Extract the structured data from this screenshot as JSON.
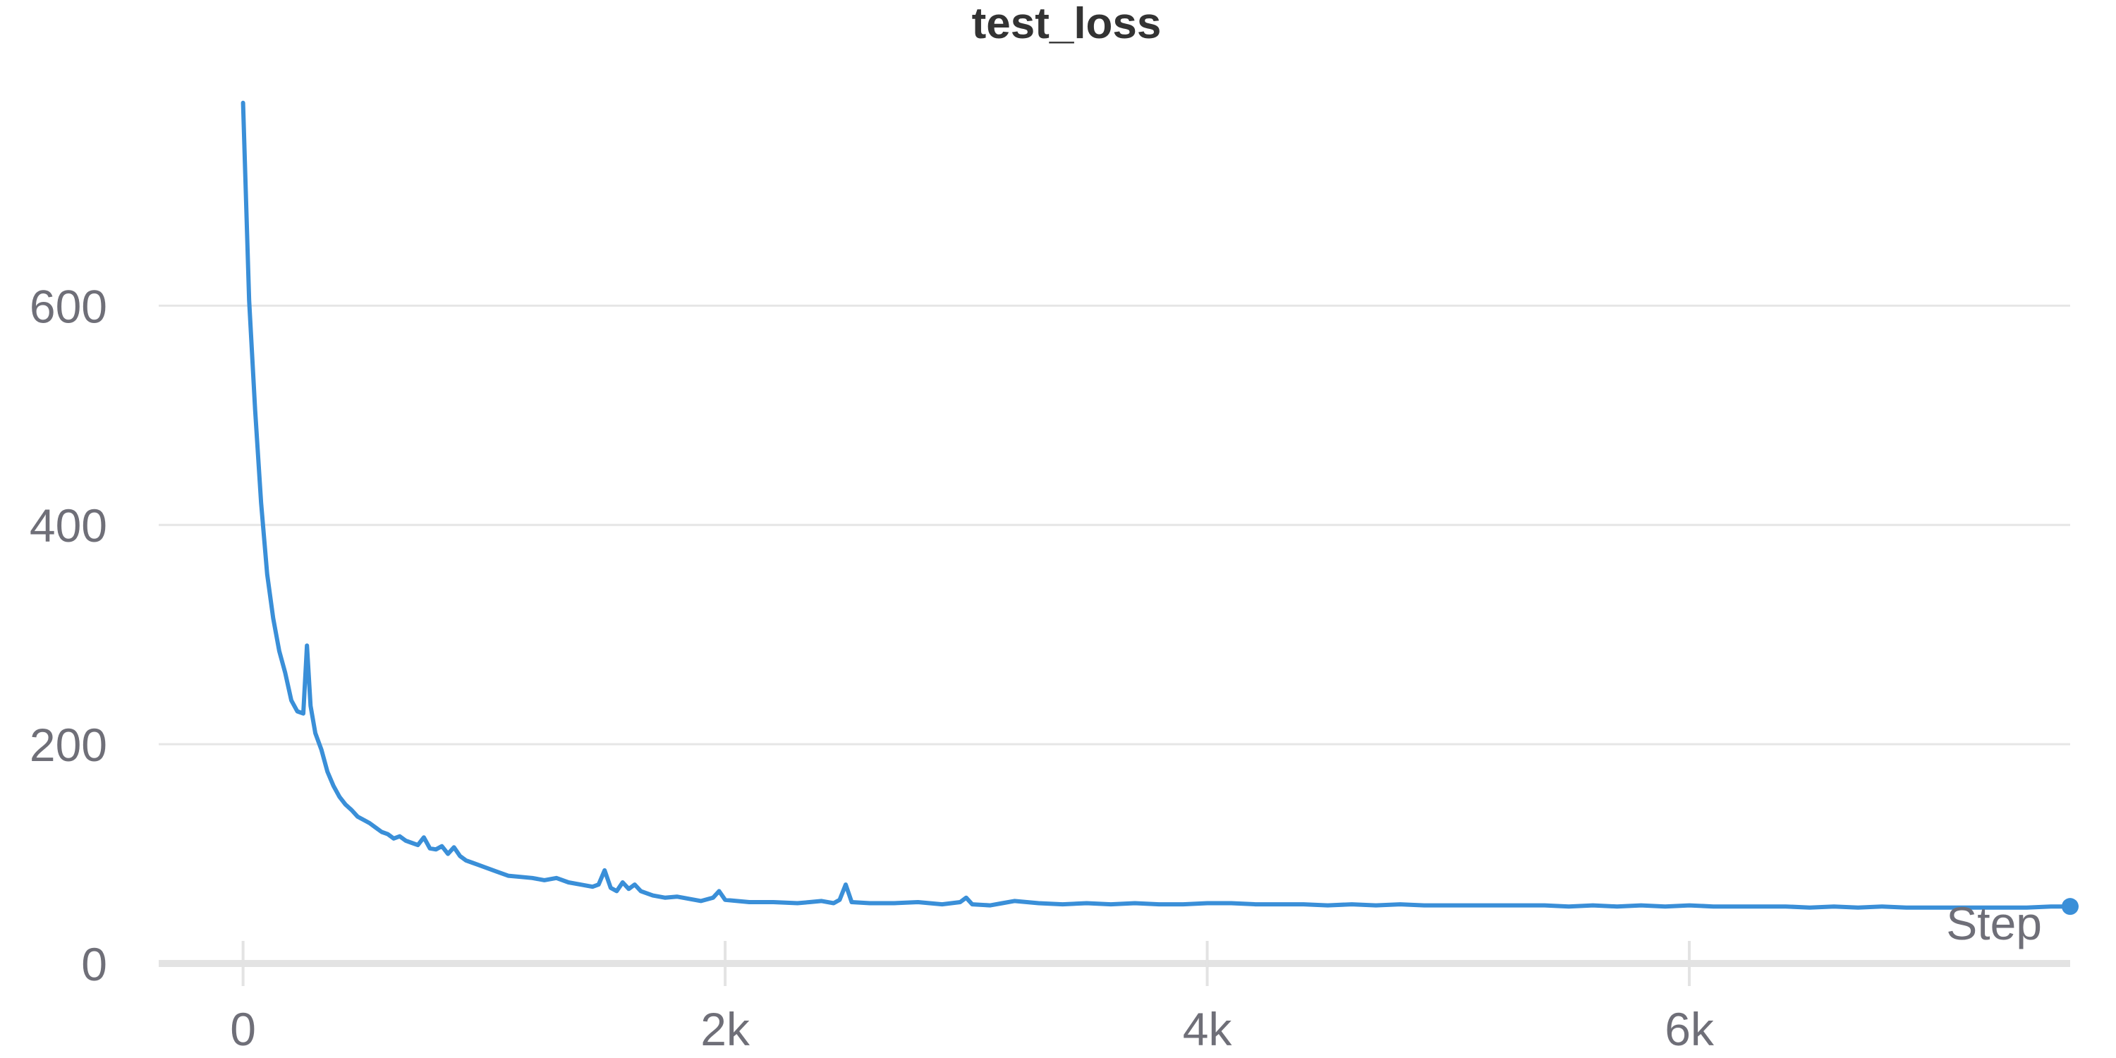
{
  "chart_data": {
    "type": "line",
    "title": "test_loss",
    "xlabel": "Step",
    "ylabel": "",
    "xlim": [
      -350,
      7580
    ],
    "ylim": [
      0,
      790
    ],
    "x_ticks": [
      {
        "value": 0,
        "label": "0"
      },
      {
        "value": 2000,
        "label": "2k"
      },
      {
        "value": 4000,
        "label": "4k"
      },
      {
        "value": 6000,
        "label": "6k"
      }
    ],
    "y_ticks": [
      {
        "value": 0,
        "label": "0"
      },
      {
        "value": 200,
        "label": "200"
      },
      {
        "value": 400,
        "label": "400"
      },
      {
        "value": 600,
        "label": "600"
      }
    ],
    "grid": true,
    "legend": "none",
    "series": [
      {
        "color": "#3a8fd8",
        "x": [
          0,
          25,
          50,
          75,
          100,
          125,
          150,
          175,
          200,
          225,
          250,
          265,
          280,
          300,
          325,
          350,
          375,
          400,
          425,
          450,
          475,
          500,
          525,
          550,
          575,
          600,
          625,
          650,
          675,
          700,
          725,
          750,
          775,
          800,
          825,
          850,
          875,
          900,
          925,
          950,
          975,
          1000,
          1050,
          1100,
          1150,
          1200,
          1250,
          1300,
          1350,
          1400,
          1450,
          1475,
          1500,
          1525,
          1550,
          1575,
          1600,
          1625,
          1650,
          1700,
          1750,
          1800,
          1850,
          1900,
          1950,
          1975,
          2000,
          2100,
          2200,
          2300,
          2350,
          2400,
          2450,
          2475,
          2500,
          2525,
          2600,
          2700,
          2800,
          2900,
          2975,
          3000,
          3025,
          3100,
          3150,
          3200,
          3300,
          3400,
          3500,
          3600,
          3700,
          3800,
          3900,
          4000,
          4100,
          4200,
          4300,
          4400,
          4500,
          4600,
          4700,
          4800,
          4900,
          5000,
          5100,
          5200,
          5300,
          5400,
          5500,
          5600,
          5700,
          5800,
          5900,
          6000,
          6100,
          6200,
          6300,
          6400,
          6500,
          6600,
          6700,
          6800,
          6900,
          7000,
          7100,
          7200,
          7300,
          7400,
          7500,
          7580
        ],
        "y": [
          785,
          605,
          505,
          420,
          355,
          315,
          285,
          265,
          240,
          230,
          228,
          290,
          235,
          210,
          195,
          175,
          162,
          152,
          145,
          140,
          134,
          131,
          128,
          124,
          120,
          118,
          114,
          116,
          112,
          110,
          108,
          115,
          105,
          104,
          107,
          100,
          106,
          98,
          94,
          92,
          90,
          88,
          84,
          80,
          79,
          78,
          76,
          78,
          74,
          72,
          70,
          72,
          85,
          69,
          66,
          74,
          68,
          72,
          66,
          62,
          60,
          61,
          59,
          57,
          60,
          66,
          58,
          56,
          56,
          55,
          56,
          57,
          55,
          58,
          72,
          56,
          55,
          55,
          56,
          54,
          56,
          60,
          54,
          53,
          55,
          57,
          55,
          54,
          55,
          54,
          55,
          54,
          54,
          55,
          55,
          54,
          54,
          54,
          53,
          54,
          53,
          54,
          53,
          53,
          53,
          53,
          53,
          53,
          52,
          53,
          52,
          53,
          52,
          53,
          52,
          52,
          52,
          52,
          51,
          52,
          51,
          52,
          51,
          51,
          51,
          51,
          51,
          51,
          52,
          52
        ]
      }
    ]
  }
}
